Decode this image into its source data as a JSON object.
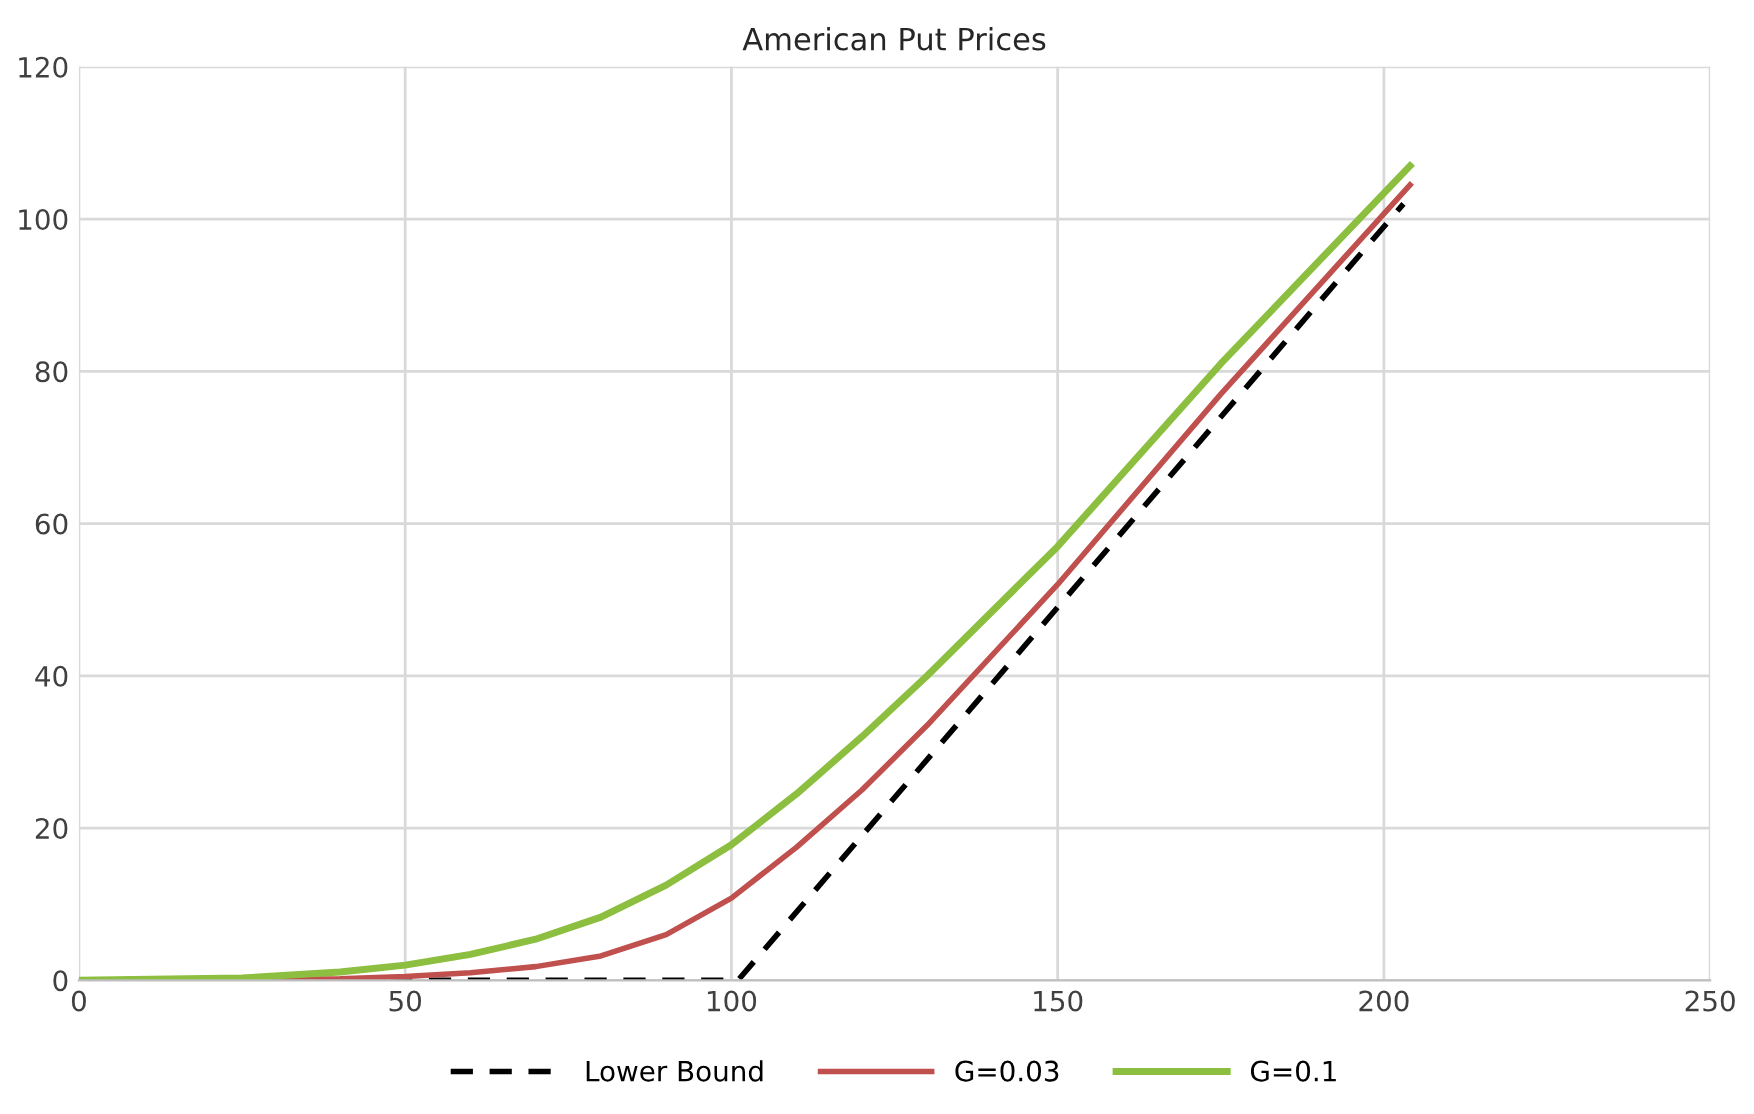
{
  "chart_data": {
    "type": "line",
    "title": "American Put Prices",
    "xlim": [
      0,
      250
    ],
    "xticks": [
      0,
      50,
      100,
      150,
      200,
      250
    ],
    "ylim": [
      0,
      120
    ],
    "yticks": [
      0,
      20,
      40,
      60,
      80,
      100,
      120
    ],
    "grid": true,
    "legend": "bottom",
    "series": [
      {
        "name": "Lower Bound",
        "color": "#000000",
        "line_style": "dashed",
        "x": [
          0,
          101,
          203
        ],
        "values": [
          0,
          0,
          102
        ]
      },
      {
        "name": "G=0.03",
        "color": "#c0504d",
        "x": [
          0,
          40,
          50,
          60,
          70,
          80,
          90,
          100,
          110,
          120,
          130,
          150,
          175,
          204
        ],
        "values": [
          0,
          0.2,
          0.5,
          1,
          1.8,
          3.2,
          6,
          10.8,
          17.5,
          25,
          33.5,
          52,
          77,
          104.5
        ]
      },
      {
        "name": "G=0.1",
        "color": "#8cbf3f",
        "x": [
          0,
          25,
          40,
          50,
          60,
          70,
          80,
          90,
          100,
          110,
          120,
          130,
          150,
          175,
          204
        ],
        "values": [
          0,
          0.3,
          1.1,
          2,
          3.4,
          5.4,
          8.3,
          12.5,
          17.8,
          24.5,
          32,
          40,
          57,
          81,
          107
        ]
      }
    ]
  }
}
